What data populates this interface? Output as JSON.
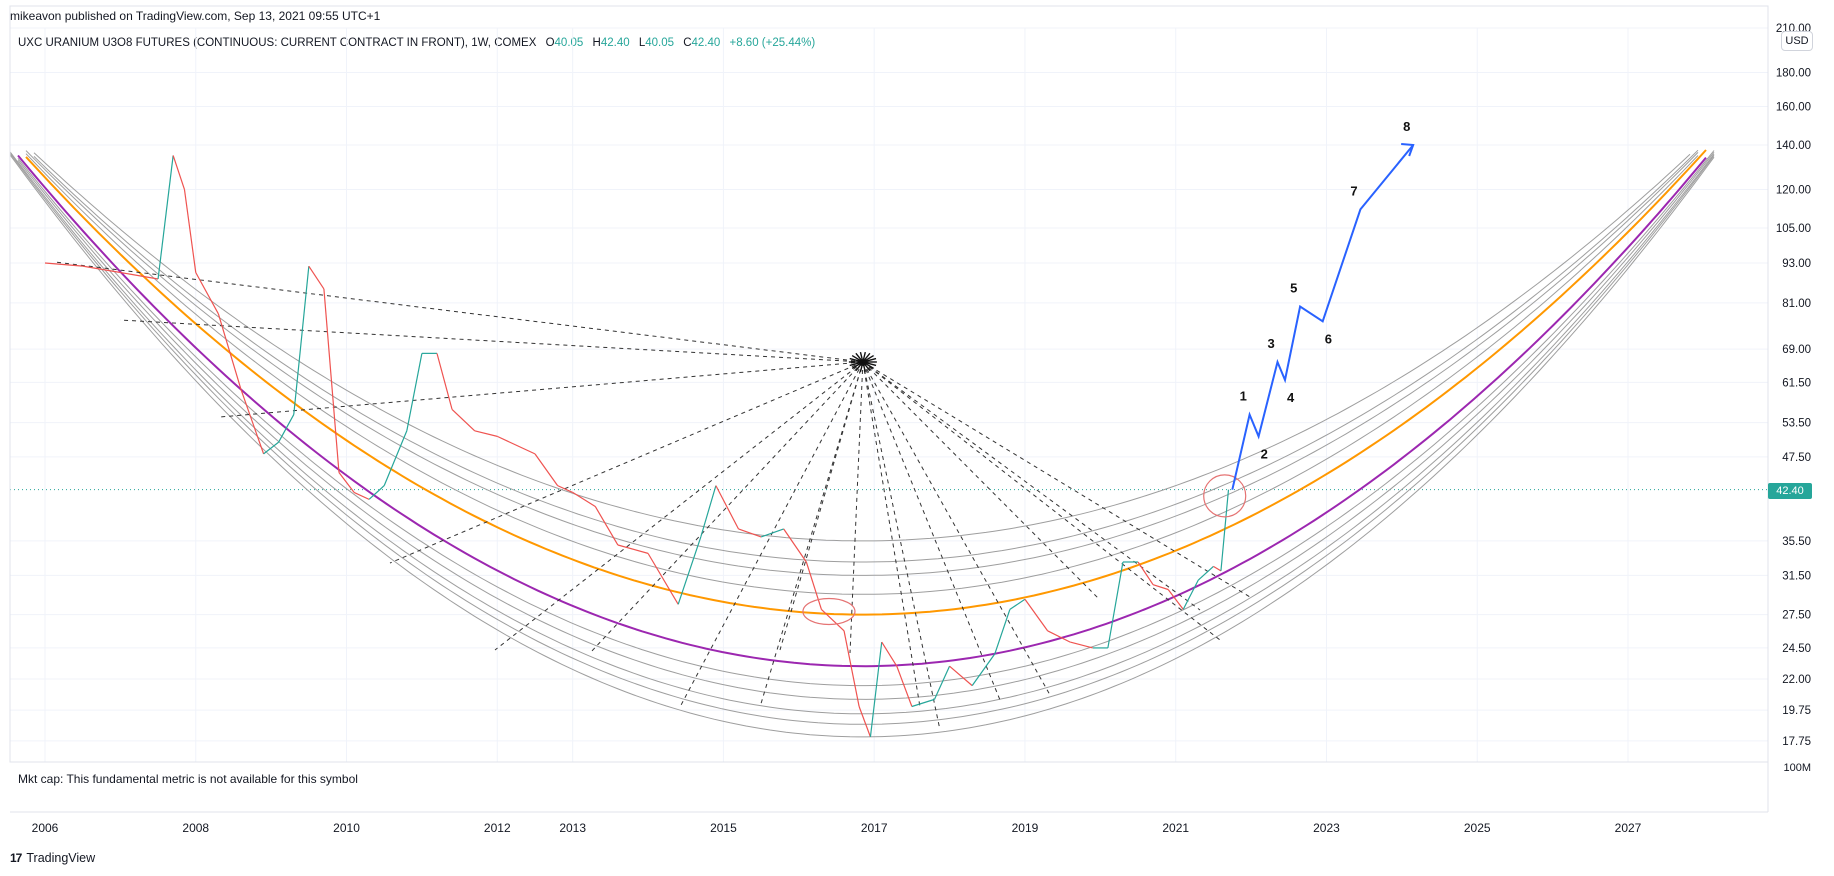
{
  "header": {
    "publisher_line": "mikeavon published on TradingView.com, Sep 13, 2021 09:55 UTC+1",
    "symbol_line": "UXC URANIUM U3O8 FUTURES (CONTINUOUS: CURRENT CONTRACT IN FRONT), 1W, COMEX",
    "ohlc": {
      "o_label": "O",
      "o_value": "40.05",
      "h_label": "H",
      "h_value": "42.40",
      "l_label": "L",
      "l_value": "40.05",
      "c_label": "C",
      "c_value": "42.40",
      "change": "+8.60 (+25.44%)"
    }
  },
  "currency": "USD",
  "last_price_label": "42.40",
  "market_cap_text": "Mkt cap: This fundamental metric is not available for this symbol",
  "footer": {
    "logo_glyph": "17",
    "brand": "TradingView"
  },
  "colors": {
    "up": "#26a69a",
    "down": "#ef5350",
    "purple": "#9c27b0",
    "orange": "#ff9800",
    "arc": "#9e9e9e",
    "projection": "#2962ff",
    "circle": "#e57373",
    "grid": "#f0f3fa"
  },
  "chart_data": {
    "type": "line",
    "title": "UXC URANIUM U3O8 FUTURES (CONTINUOUS: CURRENT CONTRACT IN FRONT), 1W, COMEX",
    "timeframe": "1W",
    "y_scale": "log",
    "ylim": [
      16.5,
      210
    ],
    "xlim": [
      2005.9,
      2028.6
    ],
    "x_ticks": [
      2006,
      2008,
      2010,
      2012,
      2013,
      2015,
      2017,
      2019,
      2021,
      2023,
      2025,
      2027
    ],
    "x_tick_labels": [
      "2006",
      "2008",
      "2010",
      "2012",
      "2013",
      "2015",
      "2017",
      "2019",
      "2021",
      "2023",
      "2025",
      "2027"
    ],
    "y_ticks": [
      17.75,
      19.75,
      22.0,
      24.5,
      27.5,
      31.5,
      35.5,
      47.5,
      53.5,
      61.5,
      69.0,
      81.0,
      93.0,
      105.0,
      120.0,
      140.0,
      160.0,
      180.0,
      210.0
    ],
    "y_tick_labels": [
      "17.75",
      "19.75",
      "22.00",
      "24.50",
      "27.50",
      "31.50",
      "35.50",
      "47.50",
      "53.50",
      "61.50",
      "69.00",
      "81.00",
      "93.00",
      "105.00",
      "120.00",
      "140.00",
      "160.00",
      "180.00",
      "210.00"
    ],
    "last_price": 42.4,
    "price_series": [
      {
        "x": 2006.0,
        "y": 93
      },
      {
        "x": 2006.5,
        "y": 92
      },
      {
        "x": 2007.0,
        "y": 90
      },
      {
        "x": 2007.5,
        "y": 88
      },
      {
        "x": 2007.7,
        "y": 135
      },
      {
        "x": 2007.85,
        "y": 120
      },
      {
        "x": 2008.0,
        "y": 90
      },
      {
        "x": 2008.3,
        "y": 78
      },
      {
        "x": 2008.6,
        "y": 60
      },
      {
        "x": 2008.9,
        "y": 48
      },
      {
        "x": 2009.1,
        "y": 50
      },
      {
        "x": 2009.3,
        "y": 55
      },
      {
        "x": 2009.5,
        "y": 92
      },
      {
        "x": 2009.7,
        "y": 85
      },
      {
        "x": 2009.9,
        "y": 45
      },
      {
        "x": 2010.1,
        "y": 42
      },
      {
        "x": 2010.3,
        "y": 41
      },
      {
        "x": 2010.5,
        "y": 43
      },
      {
        "x": 2010.8,
        "y": 52
      },
      {
        "x": 2011.0,
        "y": 68
      },
      {
        "x": 2011.2,
        "y": 68
      },
      {
        "x": 2011.4,
        "y": 56
      },
      {
        "x": 2011.7,
        "y": 52
      },
      {
        "x": 2012.0,
        "y": 51
      },
      {
        "x": 2012.5,
        "y": 48
      },
      {
        "x": 2012.8,
        "y": 43
      },
      {
        "x": 2013.0,
        "y": 42
      },
      {
        "x": 2013.3,
        "y": 40
      },
      {
        "x": 2013.6,
        "y": 35
      },
      {
        "x": 2014.0,
        "y": 34
      },
      {
        "x": 2014.4,
        "y": 28.5
      },
      {
        "x": 2014.7,
        "y": 36
      },
      {
        "x": 2014.9,
        "y": 43
      },
      {
        "x": 2015.2,
        "y": 37
      },
      {
        "x": 2015.5,
        "y": 36
      },
      {
        "x": 2015.8,
        "y": 37
      },
      {
        "x": 2016.1,
        "y": 33
      },
      {
        "x": 2016.3,
        "y": 28
      },
      {
        "x": 2016.6,
        "y": 26
      },
      {
        "x": 2016.8,
        "y": 20
      },
      {
        "x": 2016.95,
        "y": 18
      },
      {
        "x": 2017.1,
        "y": 25
      },
      {
        "x": 2017.3,
        "y": 23
      },
      {
        "x": 2017.5,
        "y": 20
      },
      {
        "x": 2017.8,
        "y": 20.5
      },
      {
        "x": 2018.0,
        "y": 23
      },
      {
        "x": 2018.3,
        "y": 21.5
      },
      {
        "x": 2018.6,
        "y": 24
      },
      {
        "x": 2018.8,
        "y": 28
      },
      {
        "x": 2019.0,
        "y": 29
      },
      {
        "x": 2019.3,
        "y": 26
      },
      {
        "x": 2019.6,
        "y": 25
      },
      {
        "x": 2019.9,
        "y": 24.5
      },
      {
        "x": 2020.1,
        "y": 24.5
      },
      {
        "x": 2020.3,
        "y": 33
      },
      {
        "x": 2020.5,
        "y": 33
      },
      {
        "x": 2020.7,
        "y": 30.5
      },
      {
        "x": 2020.9,
        "y": 30
      },
      {
        "x": 2021.1,
        "y": 28
      },
      {
        "x": 2021.3,
        "y": 31
      },
      {
        "x": 2021.5,
        "y": 32.5
      },
      {
        "x": 2021.6,
        "y": 32
      },
      {
        "x": 2021.7,
        "y": 42.4
      }
    ],
    "projection_path": [
      {
        "label": "",
        "x": 2021.75,
        "y": 42.4
      },
      {
        "label": "1",
        "x": 2021.98,
        "y": 55
      },
      {
        "label": "2",
        "x": 2022.1,
        "y": 51
      },
      {
        "label": "3",
        "x": 2022.35,
        "y": 66
      },
      {
        "label": "4",
        "x": 2022.45,
        "y": 62
      },
      {
        "label": "5",
        "x": 2022.65,
        "y": 80
      },
      {
        "label": "6",
        "x": 2022.95,
        "y": 76
      },
      {
        "label": "7",
        "x": 2023.45,
        "y": 112
      },
      {
        "label": "8",
        "x": 2024.15,
        "y": 140
      }
    ],
    "fan_center": {
      "x": 2016.85,
      "y": 66
    },
    "highlighted_arcs": [
      {
        "name": "orange",
        "bottom": 27.5
      },
      {
        "name": "purple",
        "bottom": 23
      }
    ],
    "annotations": [
      {
        "type": "circle",
        "x": 2016.4,
        "y": 27.8
      },
      {
        "type": "circle",
        "x": 2021.65,
        "y": 41.5
      }
    ]
  }
}
